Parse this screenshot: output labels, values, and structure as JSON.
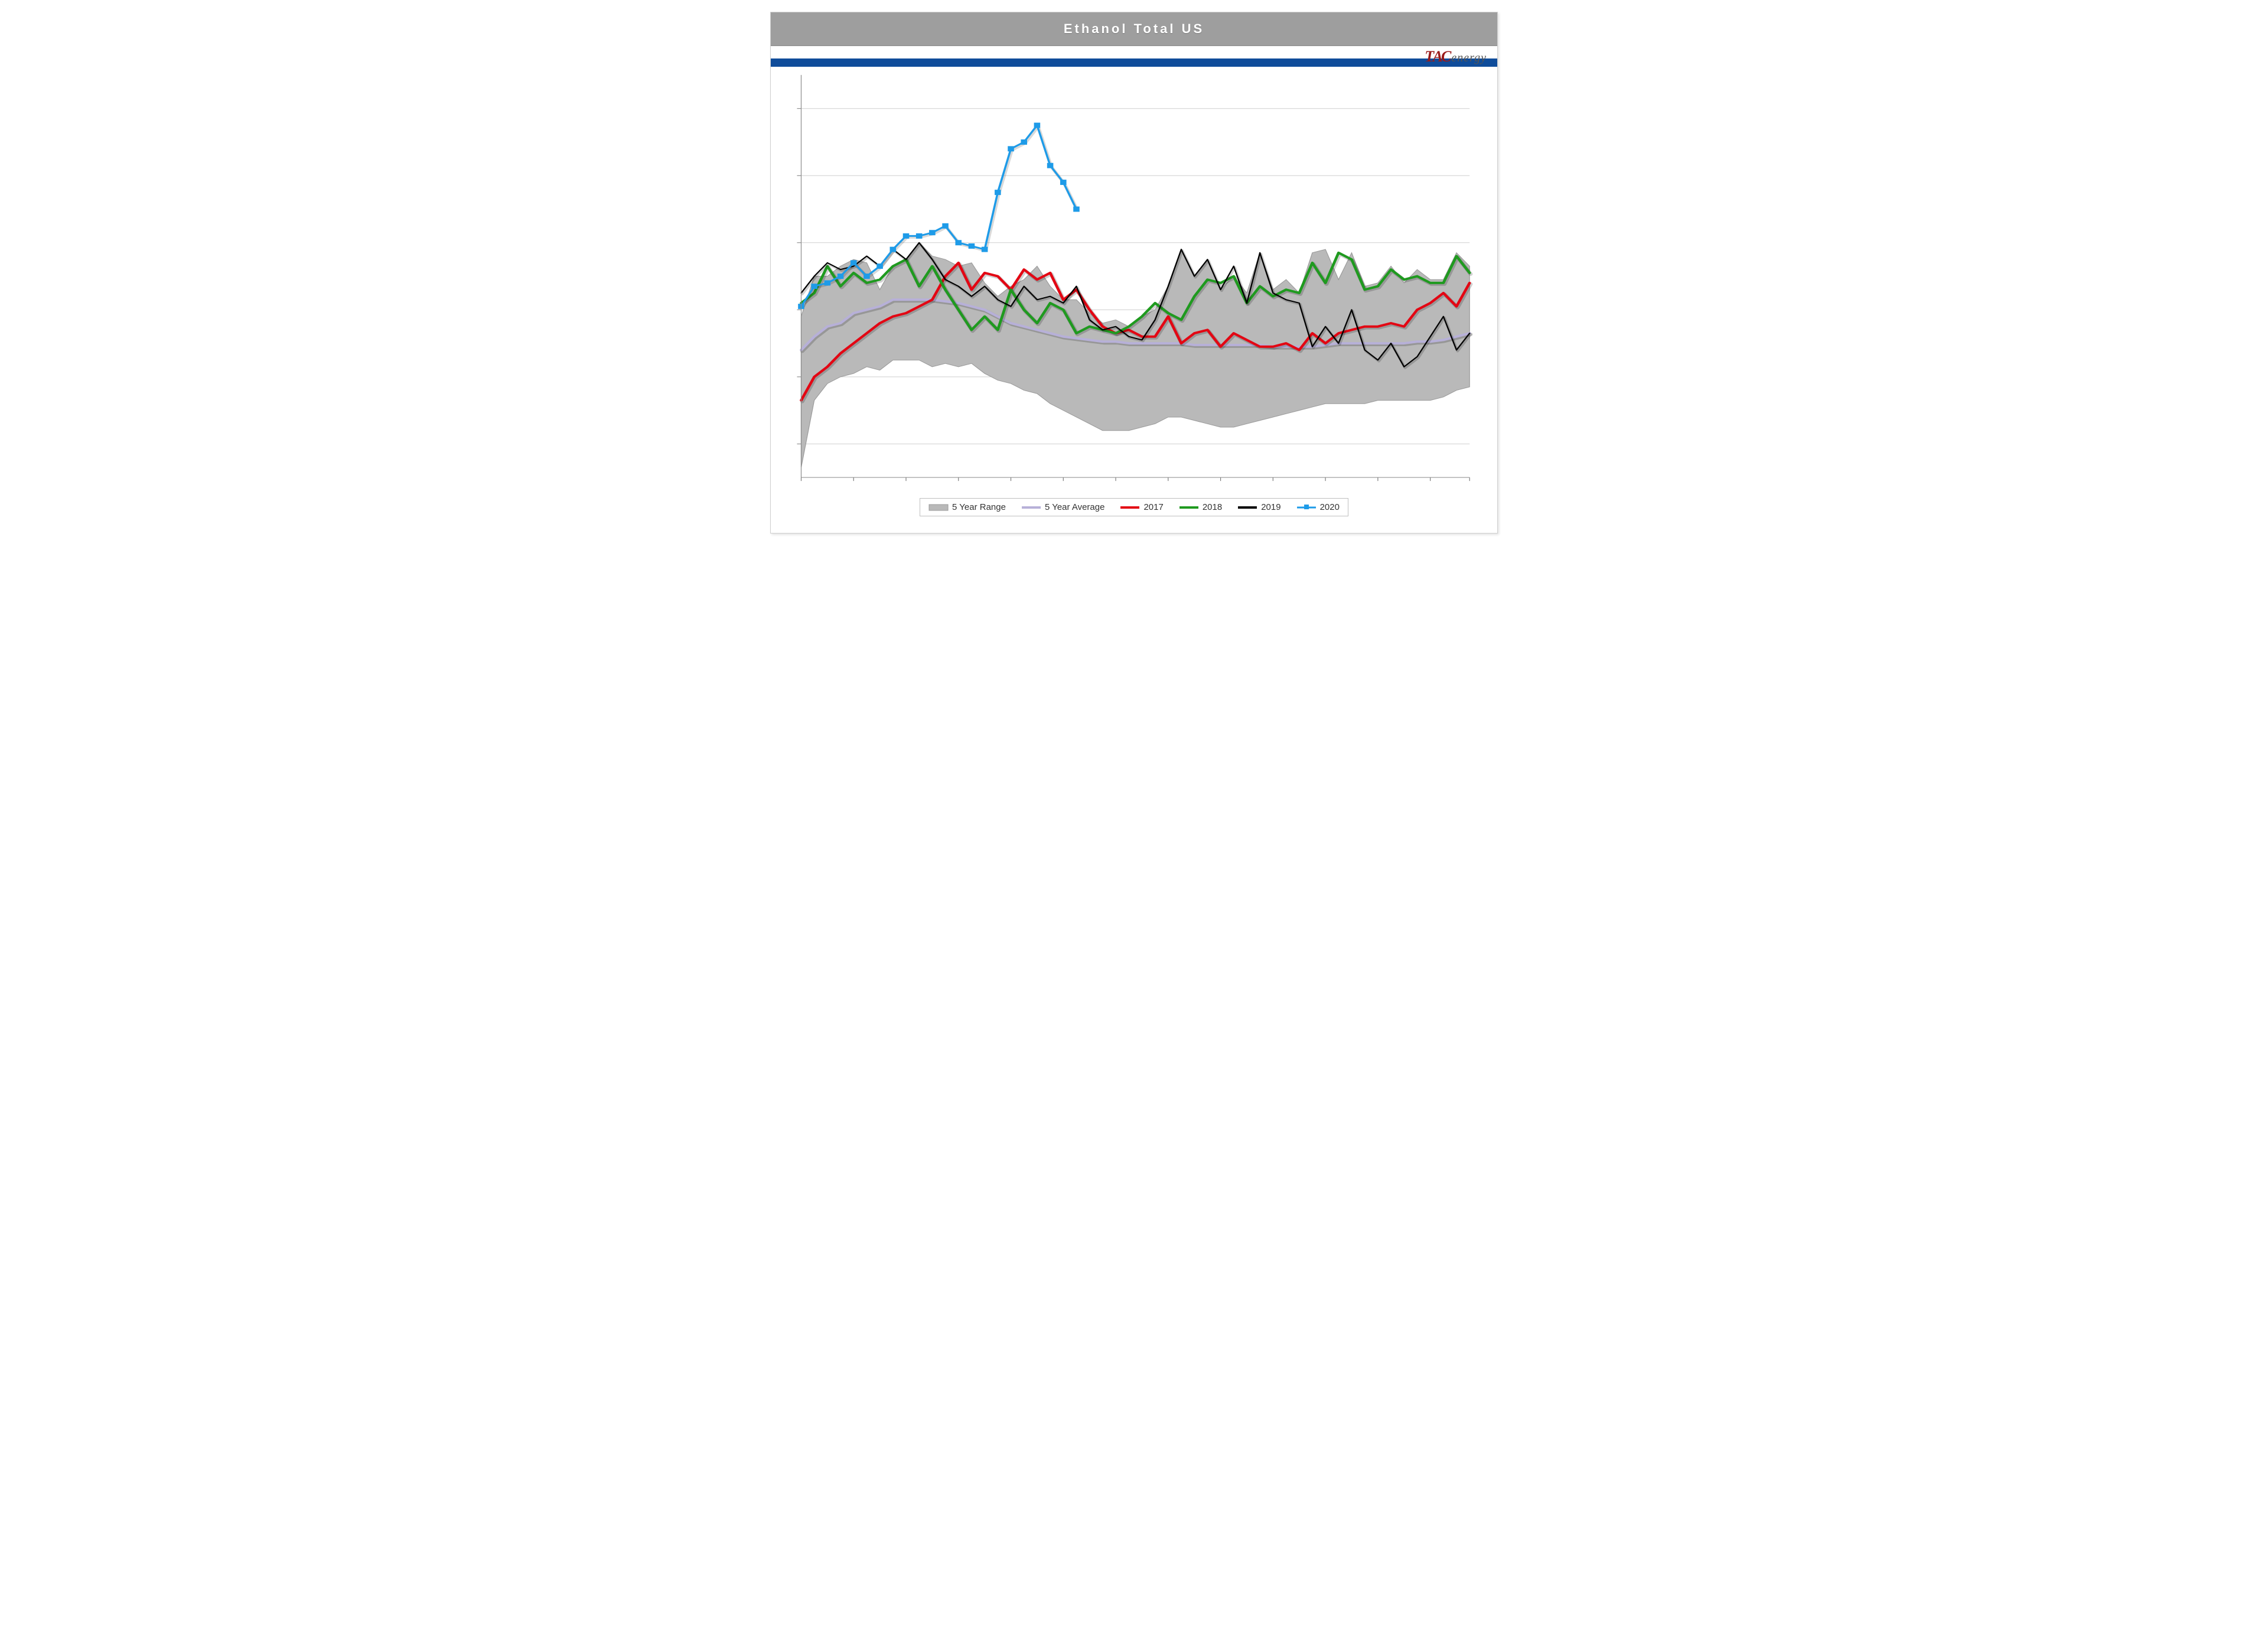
{
  "title": "Ethanol Total US",
  "logo": {
    "part1": "TA",
    "part2": "C",
    "part3": "energy"
  },
  "chart": {
    "type": "line+area",
    "background_color": "#ffffff",
    "gridline_color": "#cfcfcf",
    "title_bar_color": "#9e9e9e",
    "title_text_color": "#ffffff",
    "title_fontsize": 22,
    "blue_band_color": "#0f4c9a",
    "x": {
      "min": 1,
      "max": 52,
      "ticks": [
        1,
        5,
        9,
        13,
        17,
        21,
        25,
        29,
        33,
        37,
        41,
        45,
        49,
        52
      ]
    },
    "y": {
      "min": 17,
      "max": 29,
      "gridlines": [
        18,
        20,
        22,
        24,
        26,
        28
      ]
    },
    "series": {
      "range": {
        "label": "5 Year Range",
        "fill": "#b9b9b9",
        "stroke": "#9a9a9a",
        "hi": [
          21.8,
          23.0,
          23.0,
          23.3,
          23.5,
          23.4,
          22.6,
          23.3,
          23.5,
          24.0,
          23.6,
          23.5,
          23.3,
          23.4,
          22.8,
          22.4,
          22.7,
          22.9,
          23.3,
          22.7,
          22.3,
          22.3,
          21.9,
          21.6,
          21.7,
          21.5,
          21.8,
          22.0,
          22.7,
          23.8,
          23.0,
          23.5,
          22.6,
          23.0,
          22.5,
          23.7,
          22.6,
          22.9,
          22.5,
          23.7,
          23.8,
          22.9,
          23.7,
          22.7,
          22.8,
          23.3,
          22.8,
          23.2,
          22.9,
          22.9,
          23.7,
          23.3
        ],
        "lo": [
          17.3,
          19.3,
          19.8,
          20.0,
          20.1,
          20.3,
          20.2,
          20.5,
          20.5,
          20.5,
          20.3,
          20.4,
          20.3,
          20.4,
          20.1,
          19.9,
          19.8,
          19.6,
          19.5,
          19.2,
          19.0,
          18.8,
          18.6,
          18.4,
          18.4,
          18.4,
          18.5,
          18.6,
          18.8,
          18.8,
          18.7,
          18.6,
          18.5,
          18.5,
          18.6,
          18.7,
          18.8,
          18.9,
          19.0,
          19.1,
          19.2,
          19.2,
          19.2,
          19.2,
          19.3,
          19.3,
          19.3,
          19.3,
          19.3,
          19.4,
          19.6,
          19.7
        ]
      },
      "avg": {
        "label": "5 Year Average",
        "color": "#b7b0d8",
        "width": 4,
        "data": [
          20.8,
          21.2,
          21.5,
          21.6,
          21.9,
          22.0,
          22.1,
          22.3,
          22.3,
          22.3,
          22.3,
          22.25,
          22.2,
          22.1,
          22.0,
          21.8,
          21.6,
          21.5,
          21.4,
          21.3,
          21.2,
          21.15,
          21.1,
          21.05,
          21.05,
          21.0,
          21.0,
          21.0,
          21.0,
          21.0,
          20.95,
          20.95,
          20.95,
          20.95,
          20.95,
          20.95,
          20.9,
          20.9,
          20.9,
          20.9,
          20.95,
          21.0,
          21.0,
          21.0,
          21.0,
          21.0,
          21.0,
          21.05,
          21.05,
          21.1,
          21.2,
          21.3
        ]
      },
      "y2017": {
        "label": "2017",
        "color": "#e30613",
        "width": 4,
        "data": [
          19.3,
          20.0,
          20.3,
          20.7,
          21.0,
          21.3,
          21.6,
          21.8,
          21.9,
          22.1,
          22.3,
          23.0,
          23.4,
          22.6,
          23.1,
          23.0,
          22.6,
          23.2,
          22.9,
          23.1,
          22.3,
          22.6,
          22.0,
          21.5,
          21.3,
          21.4,
          21.2,
          21.2,
          21.8,
          21.0,
          21.3,
          21.4,
          20.9,
          21.3,
          21.1,
          20.9,
          20.9,
          21.0,
          20.8,
          21.3,
          21.0,
          21.3,
          21.4,
          21.5,
          21.5,
          21.6,
          21.5,
          22.0,
          22.2,
          22.5,
          22.1,
          22.8
        ]
      },
      "y2018": {
        "label": "2018",
        "color": "#1f9a1f",
        "width": 4,
        "data": [
          22.2,
          22.5,
          23.3,
          22.7,
          23.1,
          22.8,
          22.9,
          23.3,
          23.5,
          22.7,
          23.3,
          22.6,
          22.0,
          21.4,
          21.8,
          21.4,
          22.6,
          22.0,
          21.6,
          22.2,
          22.0,
          21.3,
          21.5,
          21.4,
          21.3,
          21.5,
          21.8,
          22.2,
          21.9,
          21.7,
          22.4,
          22.9,
          22.8,
          23.0,
          22.2,
          22.7,
          22.4,
          22.6,
          22.5,
          23.4,
          22.8,
          23.7,
          23.5,
          22.6,
          22.7,
          23.2,
          22.9,
          23.0,
          22.8,
          22.8,
          23.6,
          23.1
        ]
      },
      "y2019": {
        "label": "2019",
        "color": "#000000",
        "width": 2,
        "data": [
          22.5,
          23.0,
          23.4,
          23.2,
          23.3,
          23.6,
          23.3,
          23.8,
          23.5,
          24.0,
          23.5,
          22.9,
          22.7,
          22.4,
          22.7,
          22.3,
          22.1,
          22.7,
          22.3,
          22.4,
          22.2,
          22.7,
          21.7,
          21.4,
          21.5,
          21.2,
          21.1,
          21.7,
          22.7,
          23.8,
          23.0,
          23.5,
          22.6,
          23.3,
          22.2,
          23.7,
          22.5,
          22.3,
          22.2,
          20.9,
          21.5,
          21.0,
          22.0,
          20.8,
          20.5,
          21.0,
          20.3,
          20.6,
          21.2,
          21.8,
          20.8,
          21.3
        ]
      },
      "y2020": {
        "label": "2020",
        "color": "#1e9be8",
        "width": 3,
        "marker": "square",
        "marker_size": 9,
        "data": [
          22.1,
          22.7,
          22.8,
          23.0,
          23.4,
          23.0,
          23.3,
          23.8,
          24.2,
          24.2,
          24.3,
          24.5,
          24.0,
          23.9,
          23.8,
          25.5,
          26.8,
          27.0,
          27.5,
          26.3,
          25.8,
          25.0
        ]
      }
    },
    "legend": {
      "border_color": "#bfbfbf",
      "items": [
        "range",
        "avg",
        "y2017",
        "y2018",
        "y2019",
        "y2020"
      ]
    }
  }
}
